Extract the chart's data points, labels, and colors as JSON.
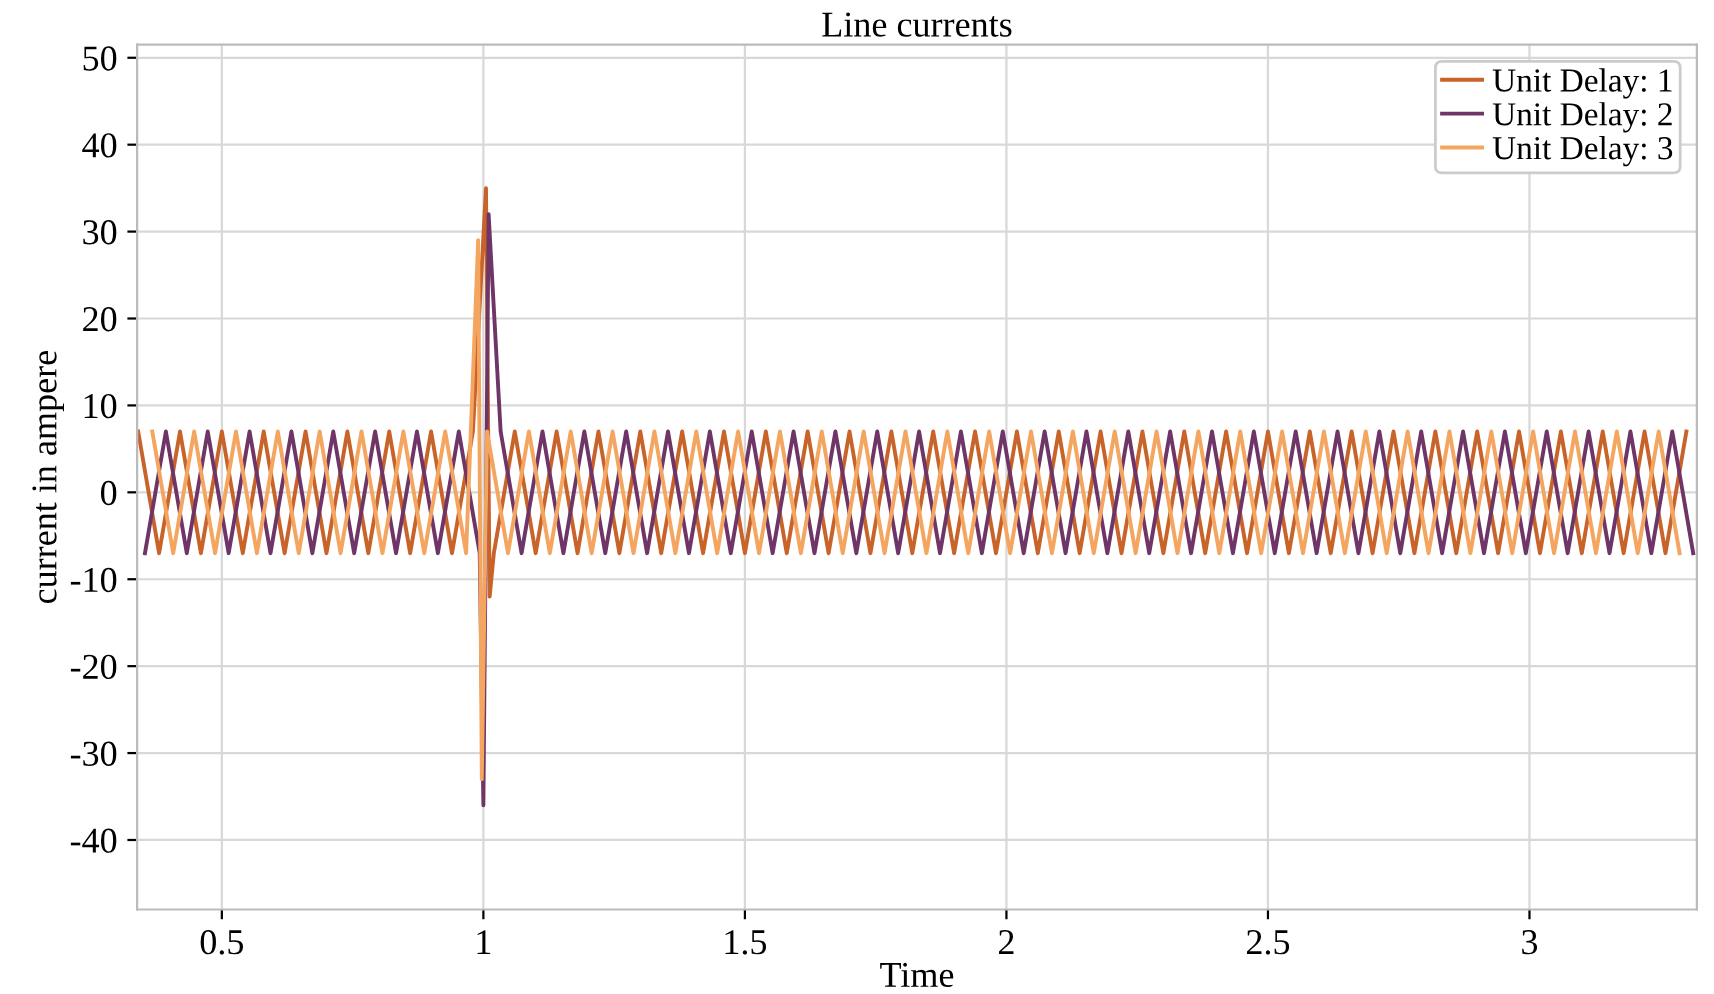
{
  "chart_data": {
    "type": "line",
    "title": "Line currents",
    "xlabel": "Time",
    "ylabel": "current in ampere",
    "xlim": [
      0.338,
      3.32
    ],
    "ylim": [
      -48,
      51.5
    ],
    "xticks": [
      0.5,
      1,
      1.5,
      2,
      2.5,
      3
    ],
    "yticks": [
      -40,
      -30,
      -20,
      -10,
      0,
      10,
      20,
      30,
      40,
      50
    ],
    "grid": true,
    "legend": "top right",
    "line_style": "solid",
    "series": [
      {
        "name": "Unit Delay: 1",
        "color": "#c8632a",
        "x": [
          0.34,
          0.38,
          0.42,
          0.46,
          0.5,
          0.54,
          0.58,
          0.62,
          0.66,
          0.7,
          0.74,
          0.78,
          0.82,
          0.86,
          0.9,
          0.94,
          0.98,
          1.005,
          1.012,
          1.02,
          1.06,
          1.1,
          1.14,
          1.18,
          1.22,
          1.26,
          1.3,
          1.34,
          1.38,
          1.42,
          1.46,
          1.5,
          1.54,
          1.58,
          1.62,
          1.66,
          1.7,
          1.74,
          1.78,
          1.82,
          1.86,
          1.9,
          1.94,
          1.98,
          2.02,
          2.06,
          2.1,
          2.14,
          2.18,
          2.22,
          2.26,
          2.3,
          2.34,
          2.38,
          2.42,
          2.46,
          2.5,
          2.54,
          2.58,
          2.62,
          2.66,
          2.7,
          2.74,
          2.78,
          2.82,
          2.86,
          2.9,
          2.94,
          2.98,
          3.02,
          3.06,
          3.1,
          3.14,
          3.18,
          3.22,
          3.26,
          3.3
        ],
        "values": [
          7,
          -7,
          7,
          -7,
          7,
          -7,
          7,
          -7,
          7,
          -7,
          7,
          -7,
          7,
          -7,
          7,
          -7,
          7,
          35,
          -12,
          -7,
          7,
          -7,
          7,
          -7,
          7,
          -7,
          7,
          -7,
          7,
          -7,
          7,
          -7,
          7,
          -7,
          7,
          -7,
          7,
          -7,
          7,
          -7,
          7,
          -7,
          7,
          -7,
          7,
          -7,
          7,
          -7,
          7,
          -7,
          7,
          -7,
          7,
          -7,
          7,
          -7,
          7,
          -7,
          7,
          -7,
          7,
          -7,
          7,
          -7,
          7,
          -7,
          7,
          -7,
          7,
          -7,
          7,
          -7,
          7,
          -7,
          7,
          -7,
          7
        ]
      },
      {
        "name": "Unit Delay: 2",
        "color": "#6e3566",
        "x": [
          0.353,
          0.393,
          0.433,
          0.473,
          0.513,
          0.553,
          0.593,
          0.633,
          0.673,
          0.713,
          0.753,
          0.793,
          0.833,
          0.873,
          0.913,
          0.953,
          0.993,
          1.0,
          1.01,
          1.033,
          1.073,
          1.113,
          1.153,
          1.193,
          1.233,
          1.273,
          1.313,
          1.353,
          1.393,
          1.433,
          1.473,
          1.513,
          1.553,
          1.593,
          1.633,
          1.673,
          1.713,
          1.753,
          1.793,
          1.833,
          1.873,
          1.913,
          1.953,
          1.993,
          2.033,
          2.073,
          2.113,
          2.153,
          2.193,
          2.233,
          2.273,
          2.313,
          2.353,
          2.393,
          2.433,
          2.473,
          2.513,
          2.553,
          2.593,
          2.633,
          2.673,
          2.713,
          2.753,
          2.793,
          2.833,
          2.873,
          2.913,
          2.953,
          2.993,
          3.033,
          3.073,
          3.113,
          3.153,
          3.193,
          3.233,
          3.273,
          3.313
        ],
        "values": [
          -7,
          7,
          -7,
          7,
          -7,
          7,
          -7,
          7,
          -7,
          7,
          -7,
          7,
          -7,
          7,
          -7,
          7,
          -7,
          -36,
          32,
          7,
          -7,
          7,
          -7,
          7,
          -7,
          7,
          -7,
          7,
          -7,
          7,
          -7,
          7,
          -7,
          7,
          -7,
          7,
          -7,
          7,
          -7,
          7,
          -7,
          7,
          -7,
          7,
          -7,
          7,
          -7,
          7,
          -7,
          7,
          -7,
          7,
          -7,
          7,
          -7,
          7,
          -7,
          7,
          -7,
          7,
          -7,
          7,
          -7,
          7,
          -7,
          7,
          -7,
          7,
          -7,
          7,
          -7,
          7,
          -7,
          7,
          -7,
          7,
          -7
        ]
      },
      {
        "name": "Unit Delay: 3",
        "color": "#f4a560",
        "x": [
          0.367,
          0.407,
          0.447,
          0.487,
          0.527,
          0.567,
          0.607,
          0.647,
          0.687,
          0.727,
          0.767,
          0.807,
          0.847,
          0.887,
          0.927,
          0.967,
          0.99,
          0.997,
          1.007,
          1.047,
          1.087,
          1.127,
          1.167,
          1.207,
          1.247,
          1.287,
          1.327,
          1.367,
          1.407,
          1.447,
          1.487,
          1.527,
          1.567,
          1.607,
          1.647,
          1.687,
          1.727,
          1.767,
          1.807,
          1.847,
          1.887,
          1.927,
          1.967,
          2.007,
          2.047,
          2.087,
          2.127,
          2.167,
          2.207,
          2.247,
          2.287,
          2.327,
          2.367,
          2.407,
          2.447,
          2.487,
          2.527,
          2.567,
          2.607,
          2.647,
          2.687,
          2.727,
          2.767,
          2.807,
          2.847,
          2.887,
          2.927,
          2.967,
          3.007,
          3.047,
          3.087,
          3.127,
          3.167,
          3.207,
          3.247,
          3.287
        ],
        "values": [
          7,
          -7,
          7,
          -7,
          7,
          -7,
          7,
          -7,
          7,
          -7,
          7,
          -7,
          7,
          -7,
          7,
          -7,
          29,
          -33,
          7,
          -7,
          7,
          -7,
          7,
          -7,
          7,
          -7,
          7,
          -7,
          7,
          -7,
          7,
          -7,
          7,
          -7,
          7,
          -7,
          7,
          -7,
          7,
          -7,
          7,
          -7,
          7,
          -7,
          7,
          -7,
          7,
          -7,
          7,
          -7,
          7,
          -7,
          7,
          -7,
          7,
          -7,
          7,
          -7,
          7,
          -7,
          7,
          -7,
          7,
          -7,
          7,
          -7,
          7,
          -7,
          7,
          -7,
          7,
          -7,
          7,
          -7,
          7,
          -7
        ]
      }
    ]
  }
}
